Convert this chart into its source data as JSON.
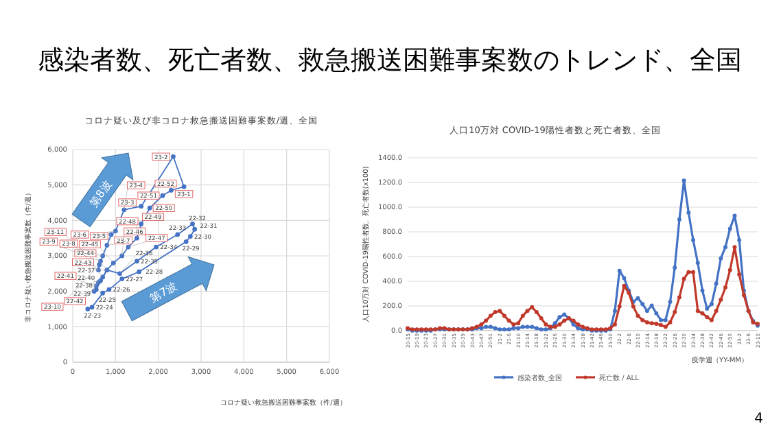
{
  "chart_data": [
    {
      "type": "line",
      "title": "コロナ疑い及び非コロナ救急搬送困難事案数/週、全国",
      "xlabel": "コロナ疑い救急搬送困難事案数（件/週）",
      "ylabel": "非コロナ疑い救急搬送困難事案数（件/週）",
      "xlim": [
        0,
        6000
      ],
      "xticks": [
        {
          "value": 0,
          "label": "0"
        },
        {
          "value": 1000,
          "label": "1,000"
        },
        {
          "value": 2000,
          "label": "2,000"
        },
        {
          "value": 3000,
          "label": "3,000"
        },
        {
          "value": 4000,
          "label": "4,000"
        },
        {
          "value": 5000,
          "label": "5,000"
        },
        {
          "value": 6000,
          "label": "6,000"
        }
      ],
      "ylim": [
        0,
        6000
      ],
      "yticks": [
        {
          "value": 0,
          "label": "0"
        },
        {
          "value": 1000,
          "label": "1,000"
        },
        {
          "value": 2000,
          "label": "2,000"
        },
        {
          "value": 3000,
          "label": "3,000"
        },
        {
          "value": 4000,
          "label": "4,000"
        },
        {
          "value": 5000,
          "label": "5,000"
        },
        {
          "value": 6000,
          "label": "6,000"
        }
      ],
      "grid": true,
      "marker": "circle",
      "annotations": [
        "感染者数、死亡者数、救急搬送困難事案数のトレンド、全国",
        "第8波",
        "第7波"
      ],
      "series": [
        {
          "color": "#4472c4",
          "x": [
            350,
            450,
            700,
            850,
            1150,
            1550,
            2650,
            2750,
            2850,
            2800,
            2450,
            1950,
            1500,
            1100,
            800,
            650,
            550,
            500
          ],
          "values": [
            1500,
            1550,
            1950,
            2050,
            2350,
            2550,
            3400,
            3550,
            3750,
            3900,
            3600,
            3250,
            2850,
            2500,
            2600,
            2300,
            2050,
            2000
          ],
          "value_labels": [
            "22-23",
            "22-24",
            "22-25",
            "22-26",
            "22-27",
            "22-28",
            "22-29",
            "22-30",
            "22-31",
            "22-32",
            "22-33",
            "22-34",
            "22-35",
            "22-36",
            "22-37",
            "22-38",
            "22-39",
            "22-40"
          ]
        },
        {
          "color": "#4472c4",
          "x": [
            550,
            600,
            700,
            800,
            950,
            1150,
            1300,
            1500,
            1600,
            1800,
            2100,
            2300,
            2600,
            2350,
            1600,
            1200,
            1000,
            900,
            800,
            700,
            650,
            620,
            600
          ],
          "values": [
            2150,
            2250,
            2400,
            2600,
            2800,
            3000,
            3250,
            3500,
            3900,
            4350,
            4700,
            4850,
            4950,
            5800,
            4400,
            4300,
            3700,
            3600,
            3300,
            3000,
            2850,
            2750,
            2600
          ],
          "value_labels": [
            "22-41",
            "22-42",
            "22-43",
            "22-44",
            "22-45",
            "22-46",
            "22-47",
            "22-48",
            "22-49",
            "22-50",
            "22-51",
            "22-52",
            "23-1",
            "23-2",
            "23-3",
            "23-4",
            "23-5",
            "23-6",
            "23-7",
            "23-8",
            "23-9",
            "23-10",
            "23-11"
          ]
        }
      ]
    },
    {
      "type": "line",
      "title": "人口10万対 COVID-19陽性者数と死亡者数、全国",
      "xlabel": "疫学週（YY-MM）",
      "ylabel": "人口10万対 COVID-19陽性者数、死亡者数(x100)",
      "ylim": [
        0,
        1400
      ],
      "yticks": [
        {
          "value": 0,
          "label": "0.0"
        },
        {
          "value": 200,
          "label": "200.0"
        },
        {
          "value": 400,
          "label": "400.0"
        },
        {
          "value": 600,
          "label": "600.0"
        },
        {
          "value": 800,
          "label": "800.0"
        },
        {
          "value": 1000,
          "label": "1000.0"
        },
        {
          "value": 1200,
          "label": "1200.0"
        },
        {
          "value": 1400,
          "label": "1400.0"
        }
      ],
      "grid": "y",
      "marker": "circle",
      "legend": "bottom",
      "annotations": [
        "4"
      ],
      "categories": [
        "20-15",
        null,
        "20-19",
        null,
        "20-23",
        null,
        "20-27",
        null,
        "20-31",
        null,
        "20-35",
        null,
        "20-39",
        null,
        "20-43",
        null,
        "20-47",
        null,
        "20-51",
        null,
        "21-2",
        null,
        "21-6",
        null,
        "21-10",
        null,
        "21-14",
        null,
        "21-18",
        null,
        "21-22",
        null,
        "21-26",
        null,
        "21-30",
        null,
        "21-34",
        null,
        "21-38",
        null,
        "21-42",
        null,
        "21-46",
        null,
        "21-50",
        null,
        "22-2",
        null,
        "22-6",
        null,
        "22-10",
        null,
        "22-14",
        null,
        "22-18",
        null,
        "22-22",
        null,
        "22-26",
        null,
        "22-30",
        null,
        "22-34",
        null,
        "22-38",
        null,
        "22-42",
        null,
        "22-46",
        null,
        "22-50",
        null,
        "23-2",
        null,
        "23-6",
        null,
        "23-10"
      ],
      "series": [
        {
          "name": "感染者数_全国",
          "color": "#4472c4",
          "values": [
            10,
            0,
            0,
            0,
            0,
            0,
            10,
            10,
            10,
            10,
            10,
            10,
            10,
            10,
            10,
            20,
            20,
            30,
            30,
            20,
            10,
            10,
            10,
            20,
            20,
            30,
            30,
            30,
            20,
            10,
            10,
            20,
            60,
            110,
            130,
            100,
            50,
            20,
            10,
            10,
            0,
            0,
            0,
            0,
            10,
            160,
            485,
            425,
            325,
            233,
            263,
            215,
            160,
            203,
            140,
            85,
            85,
            233,
            510,
            900,
            1215,
            955,
            733,
            548,
            325,
            178,
            215,
            380,
            585,
            677,
            825,
            930,
            733,
            325,
            160,
            78,
            40
          ]
        },
        {
          "name": "死亡数 / ALL",
          "color": "#c0392b",
          "values": [
            20,
            10,
            10,
            10,
            10,
            10,
            10,
            20,
            20,
            10,
            10,
            10,
            10,
            10,
            20,
            30,
            50,
            80,
            120,
            150,
            160,
            120,
            80,
            50,
            60,
            120,
            160,
            190,
            150,
            100,
            50,
            30,
            30,
            50,
            80,
            100,
            80,
            50,
            30,
            20,
            10,
            10,
            10,
            10,
            20,
            50,
            196,
            363,
            307,
            196,
            120,
            85,
            67,
            60,
            56,
            45,
            30,
            67,
            150,
            270,
            420,
            474,
            474,
            160,
            140,
            110,
            85,
            160,
            250,
            350,
            490,
            677,
            455,
            288,
            160,
            67,
            55
          ]
        }
      ]
    }
  ]
}
